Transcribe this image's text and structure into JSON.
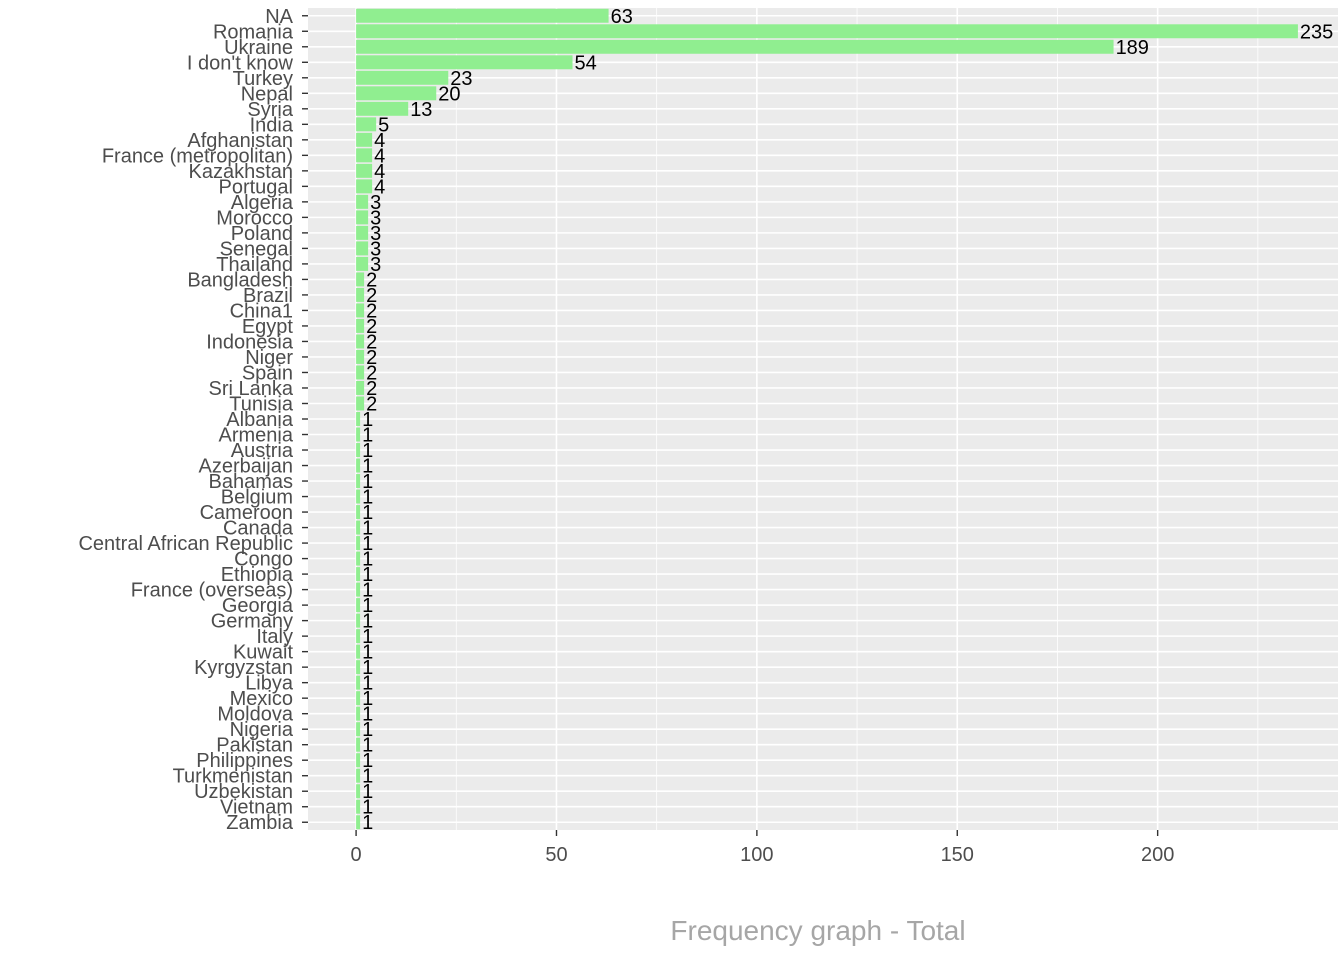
{
  "chart_data": {
    "type": "bar",
    "orientation": "horizontal",
    "xlabel": "Frequency graph - Total",
    "xlim": [
      -12,
      245
    ],
    "xticks": [
      0,
      50,
      100,
      150,
      200
    ],
    "bar_color": "#90ee90",
    "panel_color": "#ebebeb",
    "grid": true,
    "categories": [
      "NA",
      "Romania",
      "Ukraine",
      "I don't know",
      "Turkey",
      "Nepal",
      "Syria",
      "India",
      "Afghanistan",
      "France (metropolitan)",
      "Kazakhstan",
      "Portugal",
      "Algeria",
      "Morocco",
      "Poland",
      "Senegal",
      "Thailand",
      "Bangladesh",
      "Brazil",
      "China1",
      "Egypt",
      "Indonesia",
      "Niger",
      "Spain",
      "Sri Lanka",
      "Tunisia",
      "Albania",
      "Armenia",
      "Austria",
      "Azerbaijan",
      "Bahamas",
      "Belgium",
      "Cameroon",
      "Canada",
      "Central African Republic",
      "Congo",
      "Ethiopia",
      "France (overseas)",
      "Georgia",
      "Germany",
      "Italy",
      "Kuwait",
      "Kyrgyzstan",
      "Libya",
      "Mexico",
      "Moldova",
      "Nigeria",
      "Pakistan",
      "Philippines",
      "Turkmenistan",
      "Uzbekistan",
      "Vietnam",
      "Zambia"
    ],
    "values": [
      63,
      235,
      189,
      54,
      23,
      20,
      13,
      5,
      4,
      4,
      4,
      4,
      3,
      3,
      3,
      3,
      3,
      2,
      2,
      2,
      2,
      2,
      2,
      2,
      2,
      2,
      1,
      1,
      1,
      1,
      1,
      1,
      1,
      1,
      1,
      1,
      1,
      1,
      1,
      1,
      1,
      1,
      1,
      1,
      1,
      1,
      1,
      1,
      1,
      1,
      1,
      1,
      1
    ]
  }
}
